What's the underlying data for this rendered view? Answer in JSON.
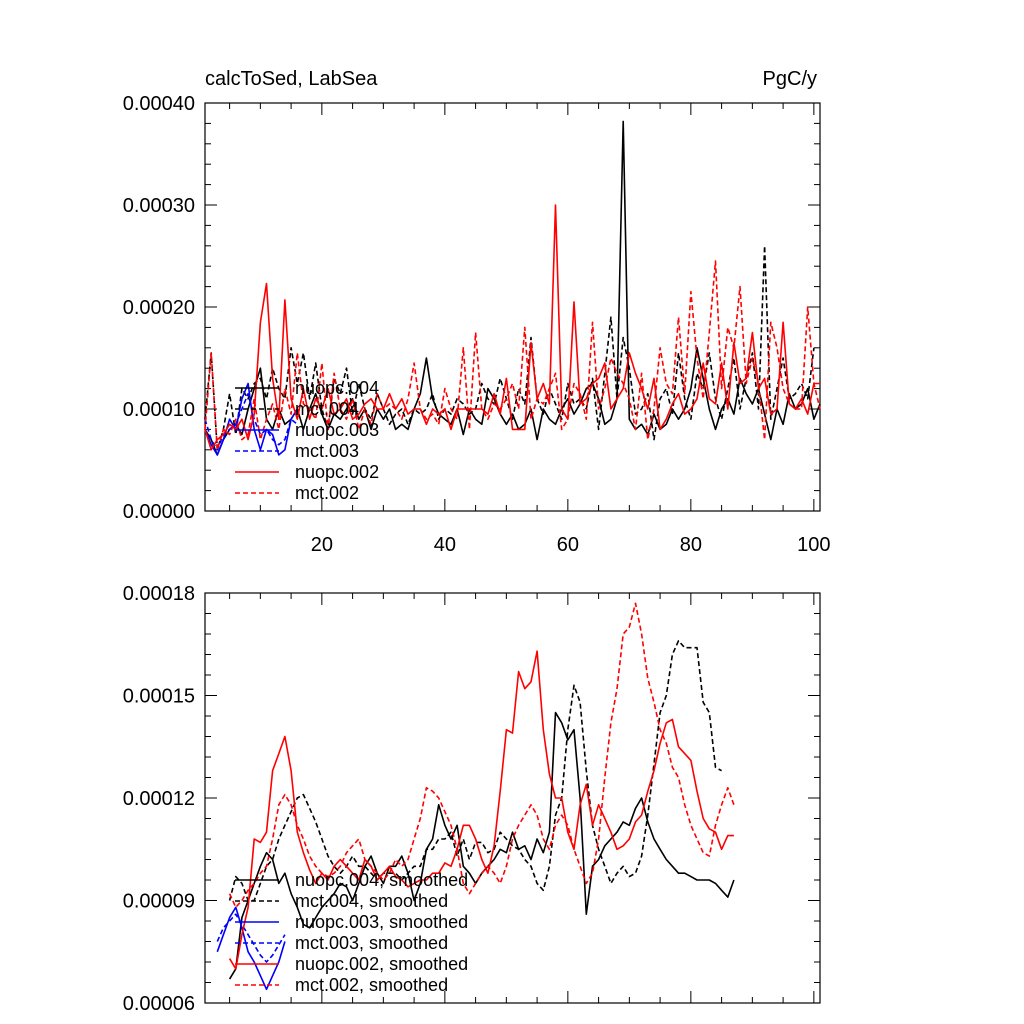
{
  "chart_data": [
    {
      "type": "line",
      "title": "calcToSed, LabSea",
      "units": "PgC/y",
      "xlim": [
        1,
        101
      ],
      "ylim": [
        0.0,
        0.0004
      ],
      "xticks": [
        20,
        40,
        60,
        80,
        100
      ],
      "xtick_labels": [
        "20",
        "40",
        "60",
        "80",
        "100"
      ],
      "yticks": [
        0.0,
        0.0001,
        0.0002,
        0.0003,
        0.0004
      ],
      "ytick_labels": [
        "0.00000",
        "0.00010",
        "0.00020",
        "0.00030",
        "0.00040"
      ],
      "legend_position": "bottom-left",
      "series": [
        {
          "name": "nuopc.004",
          "color": "#000000",
          "dash": "solid",
          "x_start": 1,
          "values": [
            8e-05,
            7e-05,
            5.5e-05,
            7e-05,
            8e-05,
            8.5e-05,
            7.5e-05,
            0.0001,
            0.00012,
            0.00014,
            9e-05,
            8e-05,
            0.0001,
            8.5e-05,
            9e-05,
            0.0001,
            8e-05,
            0.0001,
            0.000115,
            9.5e-05,
            8e-05,
            9.5e-05,
            9e-05,
            0.0001,
            0.00011,
            9e-05,
            0.0001,
            8e-05,
            0.0001,
            9e-05,
            0.0001,
            8e-05,
            8.5e-05,
            8e-05,
            0.0001,
            0.000115,
            0.00015,
            0.00011,
            9.5e-05,
            9e-05,
            8.5e-05,
            0.0001,
            7.5e-05,
            0.0001,
            9e-05,
            8.5e-05,
            0.00012,
            0.00011,
            9.5e-05,
            8.5e-05,
            9.5e-05,
            8e-05,
            8.5e-05,
            0.0001,
            7e-05,
            0.0001,
            9e-05,
            8.5e-05,
            0.0001,
            0.00011,
            9.5e-05,
            0.000105,
            0.00012,
            0.000125,
            0.00011,
            8.5e-05,
            9e-05,
            0.00011,
            0.000382,
            9e-05,
            8e-05,
            8.5e-05,
            7.5e-05,
            9.5e-05,
            8e-05,
            8.5e-05,
            0.0001,
            9e-05,
            0.0001,
            0.00012,
            0.00016,
            0.00013,
            0.0001,
            8e-05,
            0.0001,
            0.00011,
            9.5e-05,
            0.00013,
            0.000115,
            0.000105,
            0.00012,
            9.5e-05,
            7e-05,
            0.0001,
            8.5e-05,
            0.000115,
            0.0001,
            0.000105,
            0.00012,
            9e-05,
            0.000105
          ]
        },
        {
          "name": "mct.004",
          "color": "#000000",
          "dash": "dashed",
          "x_start": 1,
          "values": [
            9e-05,
            0.000155,
            6e-05,
            8e-05,
            0.000115,
            7.5e-05,
            0.00012,
            0.00011,
            0.000125,
            0.00013,
            0.00011,
            0.00014,
            0.00012,
            0.00011,
            0.00016,
            0.000125,
            0.000155,
            0.00011,
            0.000145,
            0.0001,
            8e-05,
            0.00013,
            0.000115,
            0.00014,
            9.5e-05,
            0.000125,
            0.0001,
            9e-05,
            0.000115,
            0.0001,
            8.5e-05,
            9.5e-05,
            0.0001,
            8.5e-05,
            0.0001,
            9.5e-05,
            0.0001,
            0.000115,
            9e-05,
            0.0001,
            9.5e-05,
            0.00011,
            0.000105,
            9.5e-05,
            0.0001,
            0.000125,
            0.00011,
            0.000105,
            0.00013,
            0.00011,
            9e-05,
            0.00012,
            0.000105,
            0.00017,
            0.00011,
            9.5e-05,
            0.00012,
            0.000105,
            9e-05,
            0.000125,
            0.000105,
            0.00011,
            0.0001,
            0.00013,
            8e-05,
            0.000135,
            0.00019,
            0.00011,
            0.00017,
            0.00014,
            9.5e-05,
            0.0001,
            0.000115,
            7e-05,
            0.00011,
            0.00012,
            9.5e-05,
            0.000155,
            0.00011,
            9e-05,
            0.000135,
            0.00012,
            0.000155,
            0.00011,
            9e-05,
            0.00012,
            0.00015,
            0.0001,
            0.00013,
            0.000155,
            0.0001,
            0.00026,
            9e-05,
            0.00012,
            0.00015,
            0.00011,
            0.000115,
            0.000125,
            0.00011,
            0.00016
          ]
        },
        {
          "name": "nuopc.003",
          "color": "#0000ff",
          "dash": "solid",
          "x_start": 1,
          "values": [
            8e-05,
            6.5e-05,
            5.5e-05,
            7e-05,
            9e-05,
            8e-05,
            0.00011,
            0.000125,
            8e-05,
            6e-05,
            8e-05,
            7.5e-05,
            5.5e-05,
            6e-05,
            9e-05,
            0.0001
          ]
        },
        {
          "name": "mct.003",
          "color": "#0000ff",
          "dash": "dashed",
          "x_start": 1,
          "values": [
            9e-05,
            7e-05,
            6e-05,
            7.5e-05,
            8e-05,
            8.5e-05,
            0.0001,
            0.000115,
            9e-05,
            7.5e-05,
            8e-05,
            7e-05,
            6.5e-05,
            7e-05,
            9e-05,
            8.5e-05
          ]
        },
        {
          "name": "nuopc.002",
          "color": "#ff0000",
          "dash": "solid",
          "x_start": 1,
          "values": [
            8e-05,
            6e-05,
            7e-05,
            7.5e-05,
            8.5e-05,
            8e-05,
            9e-05,
            7e-05,
            9.5e-05,
            0.000185,
            0.000223,
            0.00013,
            9e-05,
            0.000207,
            0.00011,
            9e-05,
            0.00012,
            9e-05,
            0.00011,
            0.0001,
            0.00012,
            9.5e-05,
            0.0001,
            0.00011,
            9e-05,
            9.5e-05,
            0.000105,
            0.00011,
            0.0001,
            0.0001,
            0.000115,
            0.0001,
            0.00011,
            9.5e-05,
            0.0001,
            0.0001,
            8.5e-05,
            0.0001,
            9.5e-05,
            0.0001,
            8e-05,
            0.0001,
            0.0001,
            0.0001,
            0.0001,
            0.0001,
            9.5e-05,
            0.000115,
            9.5e-05,
            0.00013,
            8e-05,
            8e-05,
            8e-05,
            0.000165,
            0.00011,
            0.000125,
            0.000105,
            0.0003,
            0.0001,
            9e-05,
            0.000205,
            0.000105,
            0.00011,
            0.000125,
            0.00013,
            0.000145,
            0.0001,
            0.00011,
            0.00012,
            0.000155,
            0.000135,
            0.00012,
            0.0001,
            0.00013,
            8e-05,
            9e-05,
            0.000105,
            0.000115,
            9.5e-05,
            0.0001,
            0.00011,
            0.000145,
            0.00011,
            0.000105,
            0.000145,
            0.0001,
            0.000165,
            0.000125,
            0.00013,
            0.000175,
            0.00012,
            0.00013,
            9.5e-05,
            0.0001,
            0.000185,
            0.000105,
            0.0001,
            0.00011,
            9.5e-05,
            0.000125,
            0.000125
          ]
        },
        {
          "name": "mct.002",
          "color": "#ff0000",
          "dash": "dashed",
          "x_start": 1,
          "values": [
            8e-05,
            0.000155,
            6e-05,
            8e-05,
            7.5e-05,
            9e-05,
            7e-05,
            7.5e-05,
            0.00011,
            7e-05,
            9e-05,
            0.000105,
            8e-05,
            0.00012,
            9.5e-05,
            0.000155,
            0.000105,
            0.0001,
            9e-05,
            0.000145,
            8e-05,
            0.000135,
            0.0001,
            9e-05,
            0.00011,
            8e-05,
            0.0001,
            8.5e-05,
            0.000115,
            0.0001,
            0.000105,
            0.0001,
            9e-05,
            0.00011,
            0.000145,
            0.0001,
            9e-05,
            9.5e-05,
            8.5e-05,
            0.00012,
            0.0001,
            9e-05,
            0.00016,
            8e-05,
            0.000175,
            0.0001,
            9e-05,
            0.000105,
            0.0001,
            0.00011,
            0.000125,
            0.0001,
            0.00018,
            9e-05,
            0.00011,
            0.000105,
            0.00012,
            0.000135,
            8e-05,
            9e-05,
            0.000125,
            0.000115,
            9e-05,
            0.000185,
            0.0001,
            0.00012,
            0.00015,
            0.000135,
            0.000125,
            0.00011,
            8e-05,
            0.000135,
            7e-05,
            0.0001,
            0.00016,
            0.000125,
            0.000115,
            0.00019,
            0.000115,
            0.000215,
            0.00015,
            0.00011,
            0.000175,
            0.000245,
            0.00012,
            0.00018,
            0.00016,
            0.00022,
            0.000125,
            0.00015,
            0.000125,
            7e-05,
            0.000185,
            0.00016,
            0.00012,
            0.000105,
            0.0001,
            0.0001,
            0.0002,
            0.000125,
            0.0001
          ]
        }
      ]
    },
    {
      "type": "line",
      "title": "",
      "xlim": [
        1,
        101
      ],
      "ylim": [
        6e-05,
        0.00018
      ],
      "xticks": [
        20,
        40,
        60,
        80,
        100
      ],
      "xtick_labels": [],
      "yticks": [
        6e-05,
        9e-05,
        0.00012,
        0.00015,
        0.00018
      ],
      "ytick_labels": [
        "0.00006",
        "0.00009",
        "0.00012",
        "0.00015",
        "0.00018"
      ],
      "legend_position": "bottom-left",
      "series": [
        {
          "name": "nuopc.004, smoothed",
          "color": "#000000",
          "dash": "solid",
          "x_start": 5,
          "values": [
            6.7e-05,
            7e-05,
            8.5e-05,
            9e-05,
            9.5e-05,
            0.0001,
            0.000104,
            0.000102,
            9.5e-05,
            9.8e-05,
            9.2e-05,
            8.8e-05,
            8.3e-05,
            8.2e-05,
            8.5e-05,
            8.8e-05,
            9e-05,
            9.2e-05,
            9.5e-05,
            9.4e-05,
            9e-05,
            9.5e-05,
            0.0001,
            0.000103,
            9.8e-05,
            9.5e-05,
            0.0001,
            0.0001,
            0.000103,
            9.8e-05,
            9e-05,
            9.5e-05,
            0.000105,
            0.000108,
            0.000118,
            0.000112,
            0.000108,
            0.000112,
            0.0001,
            9.8e-05,
            9.5e-05,
            9.8e-05,
            0.0001,
            0.000102,
            0.000105,
            0.000104,
            0.00011,
            0.000105,
            0.000106,
            0.000102,
            0.000108,
            0.000104,
            0.00011,
            0.000145,
            0.000142,
            0.000137,
            0.00014,
            0.00012,
            8.6e-05,
            0.0001,
            0.000102,
            0.000106,
            0.000108,
            0.00011,
            0.000113,
            0.000112,
            0.000117,
            0.00012,
            0.000113,
            0.000108,
            0.000105,
            0.000102,
            0.0001,
            9.8e-05,
            9.8e-05,
            9.7e-05,
            9.6e-05,
            9.6e-05,
            9.6e-05,
            9.5e-05,
            9.3e-05,
            9.1e-05,
            9.6e-05
          ]
        },
        {
          "name": "mct.004, smoothed",
          "color": "#000000",
          "dash": "dashed",
          "x_start": 5,
          "values": [
            9e-05,
            9.7e-05,
            9.5e-05,
            9e-05,
            9e-05,
            9.5e-05,
            0.0001,
            0.000102,
            0.000108,
            0.000112,
            0.000116,
            0.00012,
            0.000121,
            0.000117,
            0.000113,
            0.000108,
            0.000103,
            0.0001,
            9.8e-05,
            0.0001,
            0.000103,
            0.0001,
            0.0001,
            9.8e-05,
            9.6e-05,
            9.8e-05,
            9.8e-05,
            9.8e-05,
            9.6e-05,
            9.8e-05,
            0.0001,
            0.0001,
            0.000105,
            0.000105,
            0.000108,
            0.000108,
            0.00011,
            0.000103,
            0.000108,
            0.000102,
            0.000107,
            0.000107,
            0.000104,
            0.000105,
            0.00011,
            0.000108,
            0.000106,
            0.000105,
            0.000102,
            0.0001,
            9.5e-05,
            9.3e-05,
            0.0001,
            0.000115,
            0.00012,
            0.00014,
            0.000153,
            0.000148,
            0.000128,
            0.000112,
            0.000105,
            0.0001,
            9.5e-05,
            9.8e-05,
            0.0001,
            9.7e-05,
            9.8e-05,
            0.000103,
            0.000115,
            0.00013,
            0.000145,
            0.00015,
            0.000162,
            0.000166,
            0.000164,
            0.000164,
            0.000164,
            0.000148,
            0.000145,
            0.000129,
            0.000128
          ]
        },
        {
          "name": "nuopc.003, smoothed",
          "color": "#0000ff",
          "dash": "solid",
          "x_start": 3,
          "values": [
            7.5e-05,
            8e-05,
            8.5e-05,
            8.8e-05,
            8.2e-05,
            7.5e-05,
            7.2e-05,
            6.8e-05,
            6.4e-05,
            6.8e-05,
            7.2e-05,
            7.8e-05
          ]
        },
        {
          "name": "mct.003, smoothed",
          "color": "#0000ff",
          "dash": "dashed",
          "x_start": 3,
          "values": [
            7.8e-05,
            8.2e-05,
            8.4e-05,
            8.6e-05,
            8.3e-05,
            8e-05,
            7.7e-05,
            7.4e-05,
            7.2e-05,
            7.4e-05,
            7.7e-05,
            8e-05
          ]
        },
        {
          "name": "nuopc.002, smoothed",
          "color": "#ff0000",
          "dash": "solid",
          "x_start": 5,
          "values": [
            7.3e-05,
            7e-05,
            8e-05,
            8.8e-05,
            0.000108,
            0.000107,
            0.00011,
            0.000128,
            0.000133,
            0.000138,
            0.000128,
            0.00011,
            0.000104,
            9.9e-05,
            9.5e-05,
            9.8e-05,
            9.6e-05,
            0.0001,
            0.000102,
            0.0001,
            9.8e-05,
            9.6e-05,
            0.000102,
            0.0001,
            9.6e-05,
            9.8e-05,
            0.0001,
            9.7e-05,
            9.6e-05,
            9.4e-05,
            9.5e-05,
            9.6e-05,
            9.6e-05,
            9.8e-05,
            9.8e-05,
            0.000101,
            0.0001,
            0.000105,
            0.000112,
            0.000112,
            0.000108,
            0.000102,
            9.8e-05,
            0.000106,
            0.000122,
            0.00014,
            0.000139,
            0.000157,
            0.000152,
            0.000154,
            0.000163,
            0.00014,
            0.000127,
            0.00012,
            0.00012,
            0.00011,
            0.000105,
            0.000118,
            0.000124,
            0.000112,
            0.000118,
            0.000114,
            0.00011,
            0.000105,
            0.000106,
            0.000108,
            0.000113,
            0.000115,
            0.000122,
            0.000128,
            0.000136,
            0.000142,
            0.000143,
            0.000135,
            0.000133,
            0.000131,
            0.000122,
            0.000114,
            0.000111,
            0.00011,
            0.000105,
            0.000109,
            0.000109
          ]
        },
        {
          "name": "mct.002, smoothed",
          "color": "#ff0000",
          "dash": "dashed",
          "x_start": 5,
          "values": [
            9.2e-05,
            8.8e-05,
            9e-05,
            9.3e-05,
            9.5e-05,
            9.8e-05,
            0.0001,
            0.000108,
            0.000118,
            0.000121,
            0.000118,
            0.000112,
            0.000108,
            0.000103,
            0.0001,
            9.8e-05,
            9.7e-05,
            9.8e-05,
            0.0001,
            0.000104,
            0.000106,
            0.000108,
            0.000102,
            0.0001,
            9.8e-05,
            9.6e-05,
            9.8e-05,
            0.000102,
            0.0001,
            0.000102,
            0.000108,
            0.000114,
            0.000123,
            0.000122,
            0.00012,
            0.000116,
            0.000112,
            0.000105,
            9.5e-05,
            9.2e-05,
            9.5e-05,
            9.8e-05,
            0.0001,
            9.8e-05,
            9.5e-05,
            0.0001,
            0.000108,
            0.000112,
            0.000115,
            0.000118,
            0.000115,
            0.000108,
            0.000105,
            0.000112,
            0.000115,
            0.000112,
            0.000105,
            0.0001,
            9.5e-05,
            9.8e-05,
            0.000108,
            0.000126,
            0.000142,
            0.000152,
            0.000168,
            0.00017,
            0.000177,
            0.000168,
            0.000155,
            0.000148,
            0.00014,
            0.000136,
            0.000129,
            0.000126,
            0.000118,
            0.000112,
            0.000108,
            0.000104,
            0.000103,
            0.000112,
            0.000118,
            0.000123,
            0.000118
          ]
        }
      ]
    }
  ]
}
